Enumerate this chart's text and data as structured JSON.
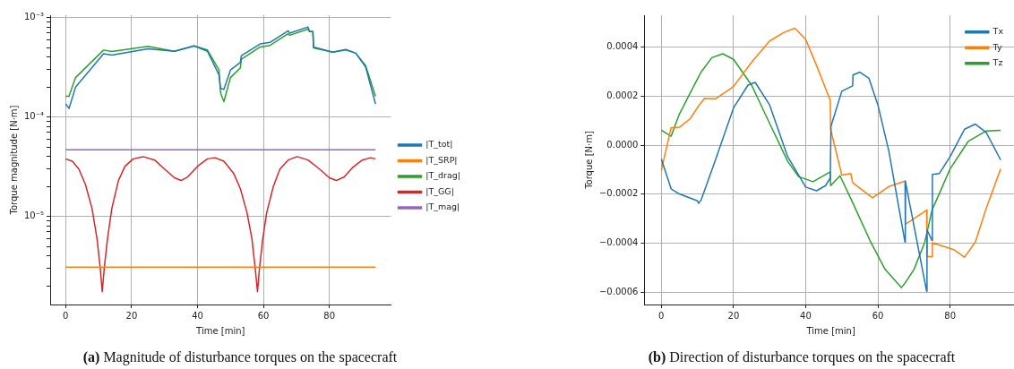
{
  "chart_data": [
    {
      "type": "line",
      "xlabel": "Time [min]",
      "ylabel": "Torque magnitude [N·m]",
      "log": "y",
      "grid": true,
      "legend": "right",
      "xlim": [
        -4.7,
        98.7
      ],
      "xticks": [
        0,
        20,
        40,
        60,
        80
      ],
      "ylim": [
        1.3e-06,
        0.00106
      ],
      "yticks": [
        {
          "value": 2e-06,
          "label": null
        },
        {
          "value": 3e-06,
          "label": null
        },
        {
          "value": 4e-06,
          "label": null
        },
        {
          "value": 5e-06,
          "label": null
        },
        {
          "value": 6e-06,
          "label": null
        },
        {
          "value": 7e-06,
          "label": null
        },
        {
          "value": 8e-06,
          "label": null
        },
        {
          "value": 9e-06,
          "label": null
        },
        {
          "value": 1e-05,
          "label": "10⁻⁵"
        },
        {
          "value": 2e-05,
          "label": null
        },
        {
          "value": 3e-05,
          "label": null
        },
        {
          "value": 4e-05,
          "label": null
        },
        {
          "value": 5e-05,
          "label": null
        },
        {
          "value": 6e-05,
          "label": null
        },
        {
          "value": 7e-05,
          "label": null
        },
        {
          "value": 8e-05,
          "label": null
        },
        {
          "value": 9e-05,
          "label": null
        },
        {
          "value": 0.0001,
          "label": "10⁻⁴"
        },
        {
          "value": 0.0002,
          "label": null
        },
        {
          "value": 0.0003,
          "label": null
        },
        {
          "value": 0.0004,
          "label": null
        },
        {
          "value": 0.0005,
          "label": null
        },
        {
          "value": 0.0006,
          "label": null
        },
        {
          "value": 0.0007,
          "label": null
        },
        {
          "value": 0.0008,
          "label": null
        },
        {
          "value": 0.0009,
          "label": null
        },
        {
          "value": 0.001,
          "label": "10⁻³"
        }
      ],
      "annotations": [
        "(a) Magnitude of disturbance torques on the spacecraft"
      ],
      "series": [
        {
          "name": "|T_tot|",
          "color": "#1f77b4",
          "x": [
            0,
            1,
            3,
            11.5,
            14,
            25,
            33,
            39,
            43,
            46.5,
            47,
            48,
            50,
            53,
            53.3,
            59,
            62,
            67.5,
            68,
            73.5,
            74,
            75,
            75.2,
            81,
            85,
            88,
            91,
            94
          ],
          "values": [
            0.000136,
            0.000122,
            0.0002,
            0.000435,
            0.00042,
            0.000487,
            0.00046,
            0.00052,
            0.00046,
            0.000267,
            0.000194,
            0.00019,
            0.000298,
            0.000355,
            0.000416,
            0.000545,
            0.000565,
            0.00074,
            0.0007,
            0.000807,
            0.000725,
            0.000725,
            0.000508,
            0.00045,
            0.00048,
            0.00044,
            0.00032,
            0.000136
          ]
        },
        {
          "name": "|T_SRP|",
          "color": "#ff7f0e",
          "x": [
            0,
            94
          ],
          "values": [
            3.1e-06,
            3.1e-06
          ]
        },
        {
          "name": "|T_drag|",
          "color": "#2ca02c",
          "x": [
            0,
            1,
            3,
            11.5,
            14,
            25,
            33,
            39,
            43,
            46.5,
            47,
            48,
            50,
            53,
            53.3,
            59,
            62,
            67.5,
            68,
            73.5,
            74,
            75,
            75.2,
            81,
            85,
            88,
            91,
            94
          ],
          "values": [
            0.000162,
            0.000162,
            0.00025,
            0.000473,
            0.000457,
            0.000515,
            0.00046,
            0.00052,
            0.000474,
            0.0003,
            0.000174,
            0.000143,
            0.00025,
            0.000313,
            0.000383,
            0.000508,
            0.000527,
            0.00069,
            0.000666,
            0.000768,
            0.000725,
            0.000725,
            0.000497,
            0.00045,
            0.000474,
            0.00044,
            0.00033,
            0.000162
          ]
        },
        {
          "name": "|T_GG|",
          "color": "#d62728",
          "x": [
            0,
            2,
            4,
            6,
            8,
            9.5,
            10.5,
            11.1,
            11.7,
            12.7,
            14,
            16,
            18,
            20.5,
            23.5,
            27,
            30,
            33,
            35,
            37,
            40,
            43,
            45.3,
            48,
            51,
            53,
            55,
            56.5,
            57.5,
            58.2,
            58.8,
            59.8,
            61,
            63,
            65,
            67.5,
            70.2,
            73.5,
            77,
            80,
            82.1,
            84.5,
            87,
            90,
            92.5,
            94
          ],
          "values": [
            3.8e-05,
            3.6e-05,
            3e-05,
            2.1e-05,
            1.2e-05,
            6e-06,
            3e-06,
            1.75e-06,
            3e-06,
            6e-06,
            1.2e-05,
            2.3e-05,
            3.2e-05,
            3.8e-05,
            4e-05,
            3.7e-05,
            3e-05,
            2.45e-05,
            2.3e-05,
            2.5e-05,
            3.2e-05,
            3.8e-05,
            3.9e-05,
            3.6e-05,
            2.7e-05,
            1.9e-05,
            1.1e-05,
            6e-06,
            3e-06,
            1.75e-06,
            3e-06,
            6e-06,
            1.1e-05,
            2e-05,
            3e-05,
            3.7e-05,
            4e-05,
            3.7e-05,
            3e-05,
            2.45e-05,
            2.3e-05,
            2.5e-05,
            3.1e-05,
            3.7e-05,
            3.9e-05,
            3.8e-05
          ]
        },
        {
          "name": "|T_mag|",
          "color": "#9467bd",
          "x": [
            0,
            94
          ],
          "values": [
            4.7e-05,
            4.7e-05
          ]
        }
      ]
    },
    {
      "type": "line",
      "xlabel": "Time [min]",
      "ylabel": "Torque [N·m]",
      "grid": true,
      "legend": "top right",
      "xlim": [
        -4.7,
        98.7
      ],
      "xticks": [
        0,
        20,
        40,
        60,
        80
      ],
      "ylim": [
        -0.00065,
        0.00053
      ],
      "yticks": [
        {
          "value": -0.0006,
          "label": "−0.0006"
        },
        {
          "value": -0.0004,
          "label": "−0.0004"
        },
        {
          "value": -0.0002,
          "label": "−0.0002"
        },
        {
          "value": 0,
          "label": "0.0000"
        },
        {
          "value": 0.0002,
          "label": "0.0002"
        },
        {
          "value": 0.0004,
          "label": "0.0004"
        }
      ],
      "annotations": [
        "(b) Direction of disturbance torques on the spacecraft"
      ],
      "series": [
        {
          "name": "Tx",
          "color": "#1f77b4",
          "x": [
            0,
            2.7,
            5,
            10,
            10.3,
            11,
            15,
            20,
            24,
            26,
            30,
            35,
            40,
            43,
            45.5,
            46.8,
            47,
            50,
            53,
            53.1,
            55,
            57.5,
            60,
            63,
            67.5,
            67.6,
            73.5,
            73.6,
            75,
            75.1,
            77,
            80,
            84,
            87,
            90,
            94
          ],
          "values": [
            -5.6e-05,
            -0.000178,
            -0.000199,
            -0.000227,
            -0.000237,
            -0.000224,
            -6e-05,
            0.000152,
            0.000245,
            0.000256,
            0.000164,
            -4.7e-05,
            -0.000171,
            -0.000186,
            -0.000165,
            -0.000134,
            7.7e-05,
            0.00022,
            0.000242,
            0.000286,
            0.000298,
            0.000273,
            0.000164,
            -2.2e-05,
            -0.000395,
            -0.000147,
            -0.000596,
            -0.000345,
            -0.000389,
            -0.000119,
            -0.000116,
            -4.7e-05,
            6.5e-05,
            8.6e-05,
            5.2e-05,
            -6e-05
          ]
        },
        {
          "name": "Ty",
          "color": "#ff7f0e",
          "x": [
            0,
            2.7,
            5,
            8,
            10.5,
            12,
            15,
            20,
            25,
            30,
            34,
            37,
            40,
            43,
            46.8,
            46.9,
            50,
            52.5,
            53,
            58.5,
            63,
            67.5,
            67.6,
            73.5,
            73.6,
            75,
            75.1,
            81,
            84,
            87,
            90,
            94
          ],
          "values": [
            -0.000103,
            7.1e-05,
            7.3e-05,
            0.000108,
            0.000164,
            0.000191,
            0.000189,
            0.000239,
            0.000338,
            0.000425,
            0.00046,
            0.000477,
            0.000431,
            0.000325,
            0.000183,
            6.5e-05,
            -0.000122,
            -0.000116,
            -0.000153,
            -0.000215,
            -0.000169,
            -0.000147,
            -0.000323,
            -0.000265,
            -0.000455,
            -0.000455,
            -0.000398,
            -0.000426,
            -0.000457,
            -0.000395,
            -0.000258,
            -9.7e-05
          ]
        },
        {
          "name": "Tz",
          "color": "#2ca02c",
          "x": [
            0,
            2.7,
            5,
            10,
            11,
            14,
            17,
            20,
            25,
            30,
            35,
            38,
            42,
            46.8,
            46.9,
            49.5,
            53,
            58,
            62,
            66.5,
            67.5,
            70,
            73,
            75,
            80,
            85,
            90,
            94
          ],
          "values": [
            6.1e-05,
            3.6e-05,
            0.000127,
            0.00027,
            0.000298,
            0.000357,
            0.000373,
            0.00035,
            0.000245,
            8.9e-05,
            -6.6e-05,
            -0.000128,
            -0.000149,
            -0.000109,
            -0.000165,
            -0.000125,
            -0.000234,
            -0.000395,
            -0.000507,
            -0.000581,
            -0.000563,
            -0.000507,
            -0.000395,
            -0.000265,
            -9.7e-05,
            1.5e-05,
            5.8e-05,
            6.1e-05
          ]
        }
      ]
    }
  ]
}
